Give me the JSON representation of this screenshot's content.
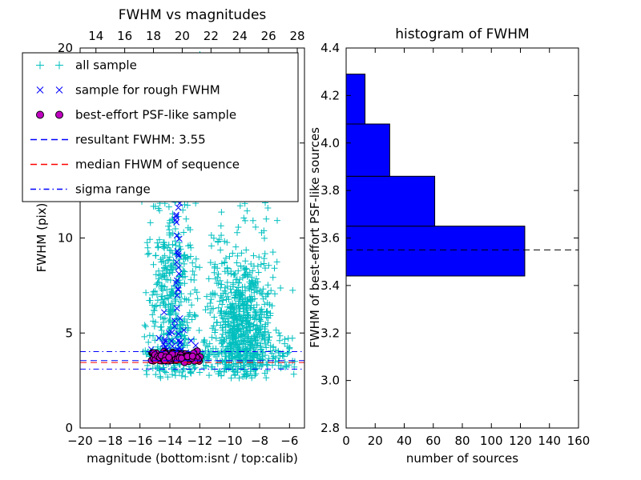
{
  "figure": {
    "bg": "#ffffff"
  },
  "left_plot": {
    "title": "FWHM vs magnitudes",
    "xlabel": "magnitude (bottom:isnt / top:calib)",
    "ylabel": "FWHM (pix)"
  },
  "right_plot": {
    "title": "histogram of FWHM",
    "xlabel": "number of sources",
    "ylabel": "FWHM of best-effort PSF-like sources"
  },
  "legend": {
    "items": [
      {
        "label": "all sample",
        "type": "marker",
        "marker": "plus",
        "color": "#00bfbf"
      },
      {
        "label": "sample for rough FWHM",
        "type": "marker",
        "marker": "x",
        "color": "#0000ff"
      },
      {
        "label": "best-effort PSF-like sample",
        "type": "marker",
        "marker": "circle",
        "color": "#bf00bf",
        "edge_color": "#000000"
      },
      {
        "label": "resultant FWHM: 3.55",
        "type": "line",
        "style": "dashed",
        "color": "#0000ff"
      },
      {
        "label": "median FHWM of sequence",
        "type": "line",
        "style": "dashed",
        "color": "#ff0000"
      },
      {
        "label": "sigma range",
        "type": "line",
        "style": "dashdot",
        "color": "#0000ff"
      }
    ]
  },
  "chart_data": [
    {
      "type": "scatter",
      "title": "FWHM vs magnitudes",
      "xlabel": "magnitude (bottom:isnt / top:calib)",
      "ylabel": "FWHM (pix)",
      "xlim": [
        -20,
        -5
      ],
      "ylim": [
        0,
        20
      ],
      "xticks": [
        -20,
        -18,
        -16,
        -14,
        -12,
        -10,
        -8,
        -6
      ],
      "xtick_labels": [
        "−20",
        "−18",
        "−16",
        "−14",
        "−12",
        "−10",
        "−8",
        "−6"
      ],
      "yticks": [
        0,
        5,
        10,
        15,
        20
      ],
      "ytick_labels": [
        "0",
        "5",
        "10",
        "15",
        "20"
      ],
      "top_axis": {
        "lim": [
          12.9,
          28.5
        ],
        "ticks": [
          14,
          16,
          18,
          20,
          22,
          24,
          26,
          28
        ],
        "tick_labels": [
          "14",
          "16",
          "18",
          "20",
          "22",
          "24",
          "26",
          "28"
        ]
      },
      "series": [
        {
          "name": "all sample",
          "marker": "plus",
          "color": "#00bfbf",
          "clusters": [
            {
              "count": 380,
              "x": {
                "dist": "normal",
                "mu": -13.9,
                "sd": 0.8
              },
              "y": {
                "dist": "normal",
                "mu": 7.0,
                "sd": 3.2
              },
              "xclip": [
                -15.9,
                -12.0
              ],
              "yclip": [
                2.6,
                19.6
              ]
            },
            {
              "count": 620,
              "x": {
                "dist": "normal",
                "mu": -9.2,
                "sd": 1.05
              },
              "y": {
                "dist": "normal",
                "mu": 5.3,
                "sd": 1.9
              },
              "xclip": [
                -11.9,
                -5.7
              ],
              "yclip": [
                2.6,
                12.5
              ]
            },
            {
              "count": 70,
              "x": {
                "dist": "normal",
                "mu": -9.5,
                "sd": 1.3
              },
              "y": {
                "dist": "uniform",
                "a": 8.0,
                "b": 19.7
              },
              "xclip": [
                -12.0,
                -6.2
              ]
            },
            {
              "count": 240,
              "x": {
                "dist": "uniform",
                "a": -15.7,
                "b": -5.6
              },
              "y": {
                "dist": "normal",
                "mu": 3.8,
                "sd": 0.45
              },
              "yclip": [
                2.7,
                5.2
              ]
            },
            {
              "count": 80,
              "x": {
                "dist": "uniform",
                "a": -16.3,
                "b": -5.6
              },
              "y": {
                "dist": "uniform",
                "a": 2.7,
                "b": 19.7
              }
            }
          ]
        },
        {
          "name": "sample for rough FWHM",
          "marker": "x",
          "color": "#0000ff",
          "clusters": [
            {
              "count": 50,
              "x": {
                "dist": "normal",
                "mu": -13.45,
                "sd": 0.1
              },
              "y": {
                "dist": "uniform",
                "a": 3.6,
                "b": 19.3
              }
            },
            {
              "count": 42,
              "x": {
                "dist": "normal",
                "mu": -13.7,
                "sd": 0.75
              },
              "y": {
                "dist": "normal",
                "mu": 4.2,
                "sd": 0.55
              },
              "xclip": [
                -15.4,
                -12.1
              ],
              "yclip": [
                3.4,
                6.2
              ]
            }
          ]
        },
        {
          "name": "best-effort PSF-like sample",
          "marker": "circle",
          "color": "#bf00bf",
          "edge_color": "#000000",
          "clusters": [
            {
              "count": 90,
              "x": {
                "dist": "uniform",
                "a": -15.25,
                "b": -11.95
              },
              "y": {
                "dist": "normal",
                "mu": 3.7,
                "sd": 0.16
              },
              "yclip": [
                3.42,
                4.1
              ]
            },
            {
              "count": 55,
              "x": {
                "dist": "uniform",
                "a": -14.7,
                "b": -12.3
              },
              "y": {
                "dist": "normal",
                "mu": 3.75,
                "sd": 0.16
              },
              "yclip": [
                3.42,
                4.12
              ]
            }
          ]
        }
      ],
      "hlines": [
        {
          "name": "resultant FWHM",
          "y": 3.55,
          "color": "#0000ff",
          "style": "dashed"
        },
        {
          "name": "median FHWM of sequence",
          "y": 3.45,
          "color": "#ff0000",
          "style": "dashed"
        },
        {
          "name": "sigma range upper",
          "y": 4.02,
          "color": "#0000ff",
          "style": "dashdot"
        },
        {
          "name": "sigma range lower",
          "y": 3.1,
          "color": "#0000ff",
          "style": "dashdot"
        }
      ]
    },
    {
      "type": "bar",
      "orientation": "horizontal",
      "title": "histogram of FWHM",
      "xlabel": "number of sources",
      "ylabel": "FWHM of best-effort PSF-like sources",
      "xlim": [
        0,
        160
      ],
      "ylim": [
        2.8,
        4.4
      ],
      "xticks": [
        0,
        20,
        40,
        60,
        80,
        100,
        120,
        140,
        160
      ],
      "xtick_labels": [
        "0",
        "20",
        "40",
        "60",
        "80",
        "100",
        "120",
        "140",
        "160"
      ],
      "yticks": [
        2.8,
        3.0,
        3.2,
        3.4,
        3.6,
        3.8,
        4.0,
        4.2,
        4.4
      ],
      "ytick_labels": [
        "2.8",
        "3.0",
        "3.2",
        "3.4",
        "3.6",
        "3.8",
        "4.0",
        "4.2",
        "4.4"
      ],
      "bar_color": "#0000ff",
      "bar_edge_color": "#000000",
      "bins": [
        {
          "lo": 3.44,
          "hi": 3.65,
          "count": 123
        },
        {
          "lo": 3.65,
          "hi": 3.86,
          "count": 61
        },
        {
          "lo": 3.86,
          "hi": 4.08,
          "count": 30
        },
        {
          "lo": 4.08,
          "hi": 4.29,
          "count": 13
        }
      ],
      "hlines": [
        {
          "name": "resultant FWHM",
          "y": 3.55,
          "color": "#000000",
          "style": "dashed"
        }
      ]
    }
  ]
}
